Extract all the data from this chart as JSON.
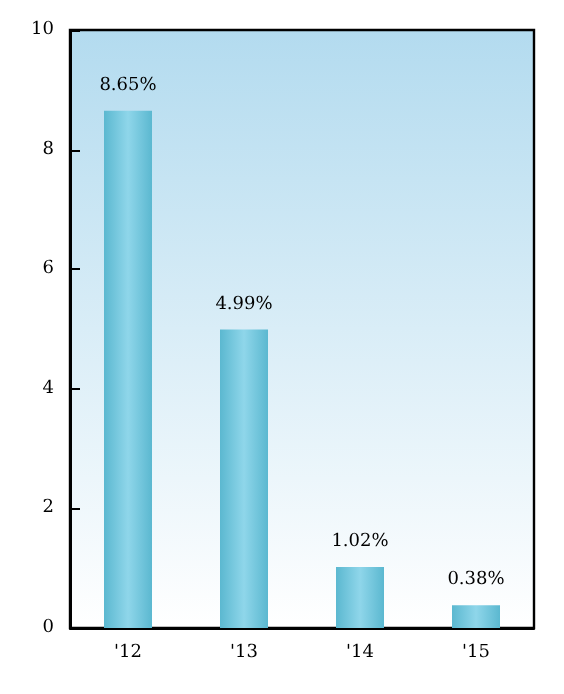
{
  "chart_data": {
    "type": "bar",
    "categories": [
      "'12",
      "'13",
      "'14",
      "'15"
    ],
    "values": [
      8.65,
      4.99,
      1.02,
      0.38
    ],
    "value_labels": [
      "8.65%",
      "4.99%",
      "1.02%",
      "0.38%"
    ],
    "color": "#5bb8d0",
    "ylim": [
      0,
      10
    ],
    "yticks": [
      0,
      2,
      4,
      6,
      8,
      10
    ],
    "grid": false
  }
}
